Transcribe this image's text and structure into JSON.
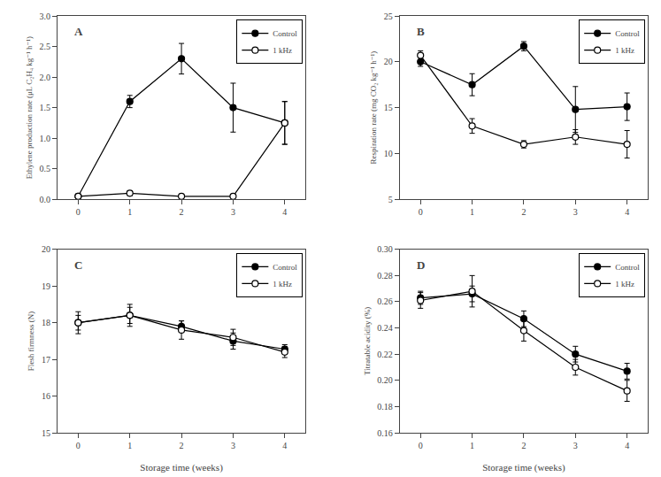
{
  "chart_data": [
    {
      "type": "line",
      "x": [
        0,
        1,
        2,
        3,
        4
      ],
      "xlim": [
        -0.4,
        4.4
      ],
      "xticks": [
        0,
        1,
        2,
        3,
        4
      ],
      "ylabel": "Ethylene production rate (μL C₂H₄ kg⁻¹ h⁻¹)",
      "ylim": [
        0.0,
        3.0
      ],
      "yticks": [
        {
          "value": 0.0,
          "label": "0.0"
        },
        0.5,
        {
          "value": 1.0,
          "label": "1.0"
        },
        1.5,
        {
          "value": 2.0,
          "label": "2.0"
        },
        2.5,
        {
          "value": 3.0,
          "label": "3.0"
        }
      ],
      "annotations": [
        "A"
      ],
      "legend": "upper right",
      "grid": false,
      "series": [
        {
          "name": "Control",
          "color": "#000000",
          "marker": "circle",
          "line_style": "solid",
          "values": [
            0.05,
            1.6,
            2.3,
            1.5,
            1.25
          ],
          "error": [
            0.03,
            0.1,
            0.25,
            0.4,
            0.35
          ]
        },
        {
          "name": "1 kHz",
          "color": "#000000",
          "marker": "circle-open",
          "line_style": "solid",
          "values": [
            0.05,
            0.1,
            0.05,
            0.05,
            1.25
          ],
          "error": [
            0.02,
            0.04,
            0.02,
            0.02,
            0.35
          ]
        }
      ]
    },
    {
      "type": "line",
      "x": [
        0,
        1,
        2,
        3,
        4
      ],
      "xlim": [
        -0.4,
        4.4
      ],
      "xticks": [
        0,
        1,
        2,
        3,
        4
      ],
      "ylabel": "Respiration rate (mg CO₂ kg⁻¹ h⁻¹)",
      "ylim": [
        5,
        25
      ],
      "yticks": [
        5,
        10,
        15,
        20,
        25
      ],
      "annotations": [
        "B"
      ],
      "legend": "upper right",
      "grid": false,
      "series": [
        {
          "name": "Control",
          "color": "#000000",
          "marker": "circle",
          "line_style": "solid",
          "values": [
            20.0,
            17.5,
            21.7,
            14.8,
            15.1
          ],
          "error": [
            0.5,
            1.2,
            0.5,
            2.5,
            1.5
          ]
        },
        {
          "name": "1 kHz",
          "color": "#000000",
          "marker": "circle-open",
          "line_style": "solid",
          "values": [
            20.7,
            13.0,
            11.0,
            11.8,
            11.0
          ],
          "error": [
            0.5,
            0.8,
            0.4,
            0.8,
            1.5
          ]
        }
      ]
    },
    {
      "type": "line",
      "x": [
        0,
        1,
        2,
        3,
        4
      ],
      "xlim": [
        -0.4,
        4.4
      ],
      "xticks": [
        0,
        1,
        2,
        3,
        4
      ],
      "xlabel": "Storage time (weeks)",
      "ylabel": "Flesh firmness (N)",
      "ylim": [
        15,
        20
      ],
      "yticks": [
        15,
        16,
        17,
        18,
        19,
        20
      ],
      "annotations": [
        "C"
      ],
      "legend": "upper right",
      "grid": false,
      "series": [
        {
          "name": "Control",
          "color": "#000000",
          "marker": "circle",
          "line_style": "solid",
          "values": [
            18.0,
            18.2,
            17.9,
            17.5,
            17.28
          ],
          "error": [
            0.2,
            0.22,
            0.15,
            0.22,
            0.12
          ]
        },
        {
          "name": "1 kHz",
          "color": "#000000",
          "marker": "circle-open",
          "line_style": "solid",
          "values": [
            18.0,
            18.2,
            17.8,
            17.6,
            17.2
          ],
          "error": [
            0.3,
            0.3,
            0.25,
            0.22,
            0.15
          ]
        }
      ]
    },
    {
      "type": "line",
      "x": [
        0,
        1,
        2,
        3,
        4
      ],
      "xlim": [
        -0.4,
        4.4
      ],
      "xticks": [
        0,
        1,
        2,
        3,
        4
      ],
      "xlabel": "Storage time (weeks)",
      "ylabel": "Titratable acidity (%)",
      "ylim": [
        0.16,
        0.3
      ],
      "yticks": [
        0.16,
        0.18,
        {
          "value": 0.2,
          "label": "0.20"
        },
        0.22,
        0.24,
        0.26,
        0.28,
        {
          "value": 0.3,
          "label": "0.30"
        }
      ],
      "annotations": [
        "D"
      ],
      "legend": "upper right",
      "grid": false,
      "series": [
        {
          "name": "Control",
          "color": "#000000",
          "marker": "circle",
          "line_style": "solid",
          "values": [
            0.263,
            0.266,
            0.247,
            0.22,
            0.207
          ],
          "error": [
            0.005,
            0.006,
            0.006,
            0.006,
            0.006
          ]
        },
        {
          "name": "1 kHz",
          "color": "#000000",
          "marker": "circle-open",
          "line_style": "solid",
          "values": [
            0.261,
            0.268,
            0.238,
            0.21,
            0.192
          ],
          "error": [
            0.006,
            0.012,
            0.008,
            0.006,
            0.008
          ]
        }
      ]
    }
  ]
}
